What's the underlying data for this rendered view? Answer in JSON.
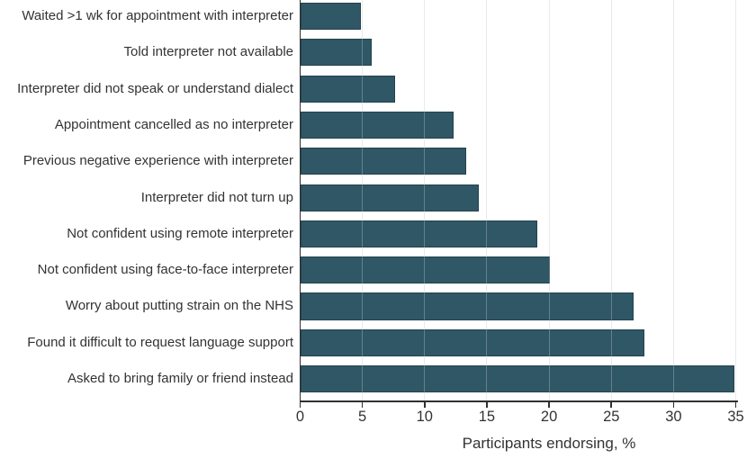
{
  "chart_data": {
    "type": "bar",
    "orientation": "horizontal",
    "title": "",
    "xlabel": "Participants endorsing, %",
    "ylabel": "",
    "categories": [
      "Waited >1 wk for appointment with interpreter",
      "Told interpreter not available",
      "Interpreter did not speak or understand dialect",
      "Appointment cancelled as no interpreter",
      "Previous negative experience with interpreter",
      "Interpreter did not turn up",
      "Not confident using remote interpreter",
      "Not confident using face-to-face interpreter",
      "Worry about putting strain on the NHS",
      "Found it difficult to request language support",
      "Asked to bring family or friend instead"
    ],
    "values": [
      4.8,
      5.7,
      7.6,
      12.3,
      13.3,
      14.3,
      19,
      20,
      26.7,
      27.6,
      34.8
    ],
    "xticks": [
      0,
      5,
      10,
      15,
      20,
      25,
      30,
      35
    ],
    "xlim": [
      0,
      35.2
    ],
    "grid": "vertical-gridlines-on",
    "legend": "none",
    "colors": {
      "bar": "#2F5765",
      "bar_border": "#24434E",
      "axis": "#303030",
      "gridline": "#E3E3E3",
      "text": "#333333",
      "background": "#FFFFFF"
    }
  }
}
